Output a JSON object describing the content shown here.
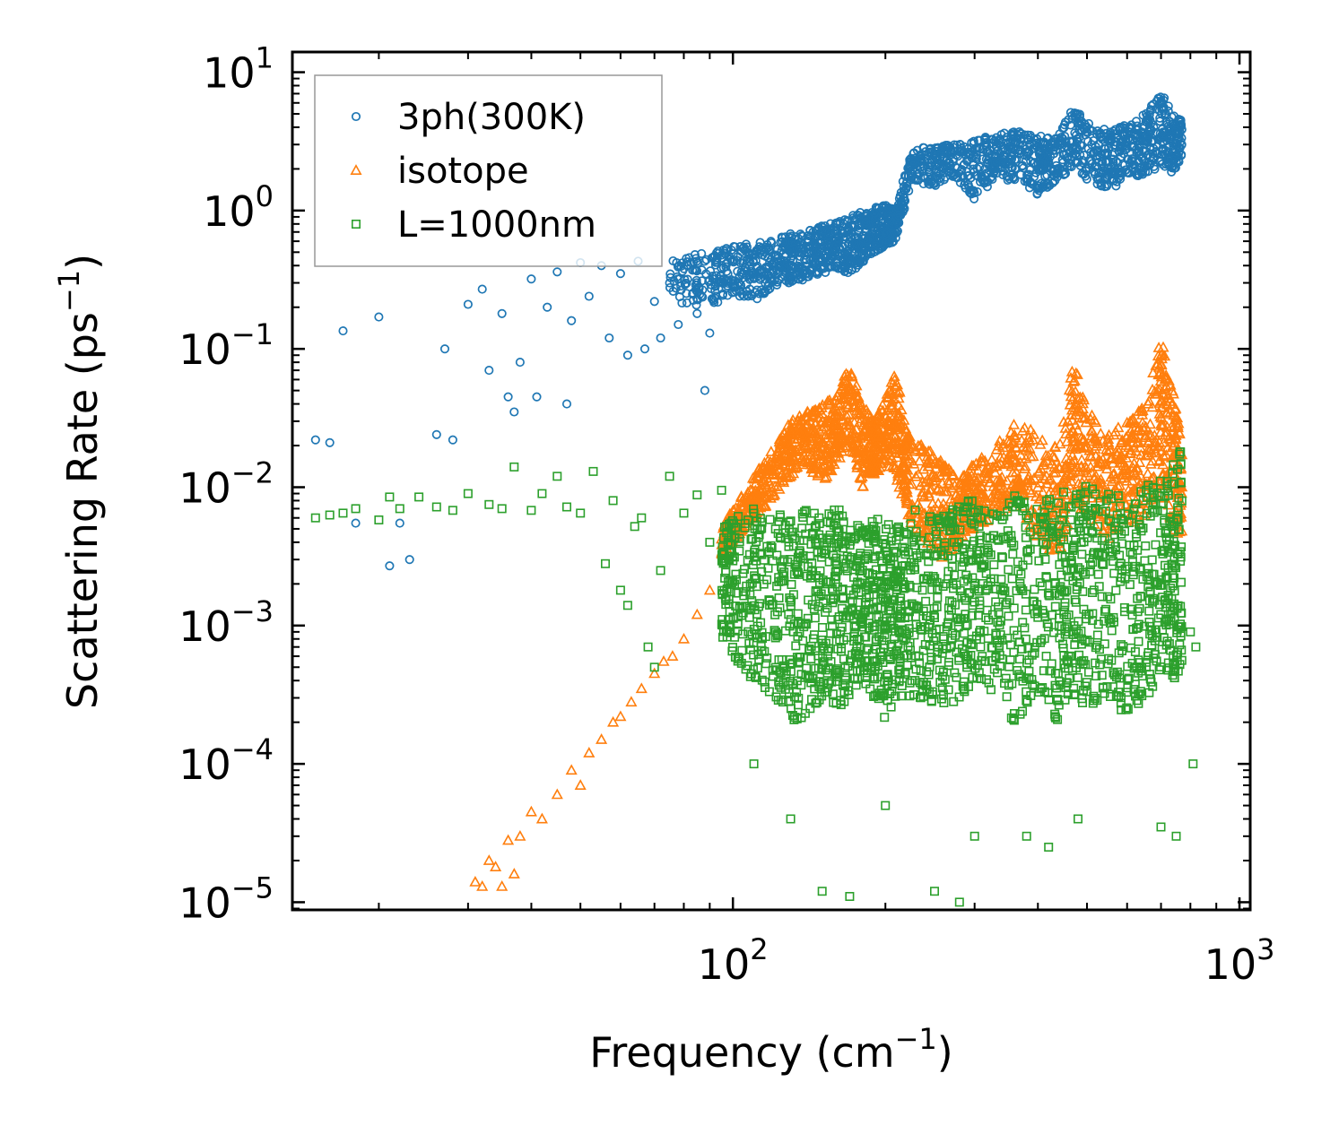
{
  "chart_data": {
    "type": "scatter",
    "x_scale": "log",
    "y_scale": "log",
    "xlabel": "Frequency (cm⁻¹)",
    "xlabel_text": "Frequency (cm",
    "xlabel_sup": "−1",
    "xlabel_close": ")",
    "ylabel": "Scattering Rate (ps⁻¹)",
    "ylabel_text": "Scattering Rate (ps",
    "ylabel_sup": "−1",
    "ylabel_close": ")",
    "xlim": [
      13.5,
      1050
    ],
    "ylim": [
      8.8e-06,
      14
    ],
    "x_ticks": [
      {
        "base": "10",
        "exp": "2",
        "value": 100
      },
      {
        "base": "10",
        "exp": "3",
        "value": 1000
      }
    ],
    "y_ticks": [
      {
        "base": "10",
        "exp": "1",
        "value": 10
      },
      {
        "base": "10",
        "exp": "0",
        "value": 1
      },
      {
        "base": "10",
        "exp": "−1",
        "value": 0.1
      },
      {
        "base": "10",
        "exp": "−2",
        "value": 0.01
      },
      {
        "base": "10",
        "exp": "−3",
        "value": 0.001
      },
      {
        "base": "10",
        "exp": "−4",
        "value": 0.0001
      },
      {
        "base": "10",
        "exp": "−5",
        "value": 1e-05
      }
    ],
    "legend_position": "upper-left",
    "series": [
      {
        "name": "3ph(300K)",
        "marker": "circle",
        "color": "#1f77b4",
        "points": [
          [
            15,
            0.022
          ],
          [
            16,
            0.021
          ],
          [
            17,
            0.135
          ],
          [
            18,
            0.0055
          ],
          [
            20,
            0.17
          ],
          [
            21,
            0.0027
          ],
          [
            22,
            0.0055
          ],
          [
            23,
            0.003
          ],
          [
            26,
            0.024
          ],
          [
            27,
            0.1
          ],
          [
            28,
            0.022
          ],
          [
            30,
            0.21
          ],
          [
            32,
            0.27
          ],
          [
            33,
            0.07
          ],
          [
            35,
            0.18
          ],
          [
            36,
            0.045
          ],
          [
            37,
            0.035
          ],
          [
            38,
            0.08
          ],
          [
            40,
            0.32
          ],
          [
            41,
            0.045
          ],
          [
            43,
            0.2
          ],
          [
            45,
            0.36
          ],
          [
            47,
            0.04
          ],
          [
            48,
            0.16
          ],
          [
            50,
            0.42
          ],
          [
            52,
            0.24
          ],
          [
            55,
            0.4
          ],
          [
            57,
            0.12
          ],
          [
            60,
            0.35
          ],
          [
            62,
            0.09
          ],
          [
            65,
            0.43
          ],
          [
            67,
            0.1
          ],
          [
            70,
            0.22
          ],
          [
            72,
            0.12
          ],
          [
            75,
            0.3
          ],
          [
            78,
            0.15
          ],
          [
            80,
            0.38
          ],
          [
            85,
            0.18
          ],
          [
            88,
            0.05
          ],
          [
            90,
            0.13
          ]
        ],
        "trend": [
          [
            75,
            0.22,
            0.45
          ],
          [
            90,
            0.2,
            0.5
          ],
          [
            100,
            0.25,
            0.55
          ],
          [
            110,
            0.22,
            0.6
          ],
          [
            120,
            0.28,
            0.6
          ],
          [
            130,
            0.3,
            0.7
          ],
          [
            140,
            0.32,
            0.72
          ],
          [
            150,
            0.35,
            0.8
          ],
          [
            160,
            0.38,
            0.85
          ],
          [
            170,
            0.35,
            0.9
          ],
          [
            180,
            0.42,
            1.0
          ],
          [
            190,
            0.5,
            1.05
          ],
          [
            200,
            0.55,
            1.1
          ],
          [
            210,
            0.6,
            1.05
          ],
          [
            225,
            1.6,
            2.8
          ],
          [
            250,
            1.5,
            2.9
          ],
          [
            270,
            1.8,
            3.0
          ],
          [
            300,
            1.2,
            3.2
          ],
          [
            330,
            1.7,
            3.6
          ],
          [
            360,
            1.6,
            3.8
          ],
          [
            400,
            1.3,
            3.5
          ],
          [
            430,
            1.6,
            3.3
          ],
          [
            470,
            2.0,
            5.5
          ],
          [
            520,
            1.5,
            4.0
          ],
          [
            560,
            1.4,
            3.8
          ],
          [
            600,
            1.8,
            4.2
          ],
          [
            650,
            1.7,
            5.0
          ],
          [
            700,
            2.2,
            7.2
          ],
          [
            740,
            1.8,
            5.0
          ],
          [
            770,
            2.5,
            4.6
          ]
        ]
      },
      {
        "name": "isotope",
        "marker": "triangle",
        "color": "#ff7f0e",
        "points": [
          [
            31,
            1.4e-05
          ],
          [
            32,
            1.3e-05
          ],
          [
            33,
            2e-05
          ],
          [
            34,
            1.8e-05
          ],
          [
            35,
            1.3e-05
          ],
          [
            36,
            2.8e-05
          ],
          [
            37,
            1.6e-05
          ],
          [
            38,
            3e-05
          ],
          [
            40,
            4.5e-05
          ],
          [
            42,
            4e-05
          ],
          [
            45,
            6e-05
          ],
          [
            48,
            9e-05
          ],
          [
            50,
            7e-05
          ],
          [
            52,
            0.00012
          ],
          [
            55,
            0.00015
          ],
          [
            58,
            0.0002
          ],
          [
            60,
            0.00022
          ],
          [
            63,
            0.00028
          ],
          [
            66,
            0.00035
          ],
          [
            70,
            0.00045
          ],
          [
            73,
            0.00055
          ],
          [
            76,
            0.0006
          ],
          [
            80,
            0.0008
          ],
          [
            85,
            0.0012
          ],
          [
            90,
            0.0018
          ]
        ],
        "trend": [
          [
            95,
            0.003,
            0.005
          ],
          [
            100,
            0.004,
            0.007
          ],
          [
            110,
            0.006,
            0.012
          ],
          [
            120,
            0.008,
            0.02
          ],
          [
            130,
            0.012,
            0.03
          ],
          [
            140,
            0.015,
            0.035
          ],
          [
            150,
            0.01,
            0.04
          ],
          [
            160,
            0.015,
            0.045
          ],
          [
            170,
            0.02,
            0.08
          ],
          [
            180,
            0.01,
            0.04
          ],
          [
            190,
            0.012,
            0.03
          ],
          [
            200,
            0.015,
            0.045
          ],
          [
            210,
            0.012,
            0.07
          ],
          [
            220,
            0.006,
            0.025
          ],
          [
            240,
            0.004,
            0.02
          ],
          [
            260,
            0.003,
            0.015
          ],
          [
            280,
            0.004,
            0.012
          ],
          [
            300,
            0.005,
            0.015
          ],
          [
            330,
            0.006,
            0.02
          ],
          [
            360,
            0.008,
            0.03
          ],
          [
            400,
            0.004,
            0.025
          ],
          [
            440,
            0.003,
            0.02
          ],
          [
            470,
            0.008,
            0.08
          ],
          [
            500,
            0.006,
            0.04
          ],
          [
            550,
            0.004,
            0.025
          ],
          [
            600,
            0.005,
            0.03
          ],
          [
            650,
            0.006,
            0.04
          ],
          [
            700,
            0.01,
            0.12
          ],
          [
            740,
            0.005,
            0.05
          ],
          [
            770,
            0.004,
            0.02
          ]
        ]
      },
      {
        "name": "L=1000nm",
        "marker": "square",
        "color": "#2ca02c",
        "points": [
          [
            15,
            0.006
          ],
          [
            16,
            0.0063
          ],
          [
            17,
            0.0065
          ],
          [
            18,
            0.007
          ],
          [
            20,
            0.0058
          ],
          [
            21,
            0.0085
          ],
          [
            22,
            0.007
          ],
          [
            24,
            0.0085
          ],
          [
            26,
            0.0072
          ],
          [
            28,
            0.0068
          ],
          [
            30,
            0.009
          ],
          [
            33,
            0.0075
          ],
          [
            35,
            0.007
          ],
          [
            37,
            0.014
          ],
          [
            40,
            0.0068
          ],
          [
            42,
            0.009
          ],
          [
            45,
            0.012
          ],
          [
            47,
            0.0072
          ],
          [
            50,
            0.0065
          ],
          [
            53,
            0.013
          ],
          [
            56,
            0.0028
          ],
          [
            58,
            0.008
          ],
          [
            60,
            0.0018
          ],
          [
            62,
            0.0014
          ],
          [
            64,
            0.0052
          ],
          [
            66,
            0.006
          ],
          [
            68,
            0.0007
          ],
          [
            70,
            0.0005
          ],
          [
            72,
            0.0025
          ],
          [
            75,
            0.012
          ],
          [
            80,
            0.0065
          ],
          [
            85,
            0.0088
          ],
          [
            90,
            0.004
          ],
          [
            95,
            0.0095
          ],
          [
            110,
            0.0001
          ],
          [
            130,
            4e-05
          ],
          [
            150,
            1.2e-05
          ],
          [
            170,
            1.1e-05
          ],
          [
            200,
            5e-05
          ],
          [
            250,
            1.2e-05
          ],
          [
            280,
            1e-05
          ],
          [
            300,
            3e-05
          ],
          [
            380,
            3e-05
          ],
          [
            420,
            2.5e-05
          ],
          [
            480,
            4e-05
          ],
          [
            700,
            3.5e-05
          ],
          [
            750,
            3e-05
          ],
          [
            800,
            0.0009
          ],
          [
            810,
            0.0001
          ],
          [
            820,
            0.0007
          ]
        ],
        "trend": [
          [
            95,
            0.0008,
            0.005
          ],
          [
            100,
            0.0006,
            0.006
          ],
          [
            110,
            0.0004,
            0.007
          ],
          [
            120,
            0.0003,
            0.007
          ],
          [
            130,
            0.0002,
            0.006
          ],
          [
            140,
            0.0002,
            0.007
          ],
          [
            150,
            0.0003,
            0.006
          ],
          [
            160,
            0.00025,
            0.008
          ],
          [
            170,
            0.0003,
            0.005
          ],
          [
            180,
            0.0004,
            0.006
          ],
          [
            190,
            0.0003,
            0.007
          ],
          [
            200,
            0.0002,
            0.006
          ],
          [
            210,
            0.00025,
            0.005
          ],
          [
            220,
            0.0003,
            0.008
          ],
          [
            240,
            0.0003,
            0.006
          ],
          [
            260,
            0.00025,
            0.007
          ],
          [
            280,
            0.0003,
            0.009
          ],
          [
            300,
            0.0004,
            0.008
          ],
          [
            330,
            0.0003,
            0.007
          ],
          [
            360,
            0.0002,
            0.009
          ],
          [
            400,
            0.0003,
            0.008
          ],
          [
            440,
            0.0002,
            0.01
          ],
          [
            470,
            0.0003,
            0.009
          ],
          [
            500,
            0.00025,
            0.012
          ],
          [
            550,
            0.0003,
            0.01
          ],
          [
            600,
            0.0002,
            0.008
          ],
          [
            650,
            0.0003,
            0.01
          ],
          [
            700,
            0.0004,
            0.012
          ],
          [
            740,
            0.0004,
            0.015
          ],
          [
            770,
            0.0005,
            0.02
          ]
        ]
      }
    ]
  }
}
